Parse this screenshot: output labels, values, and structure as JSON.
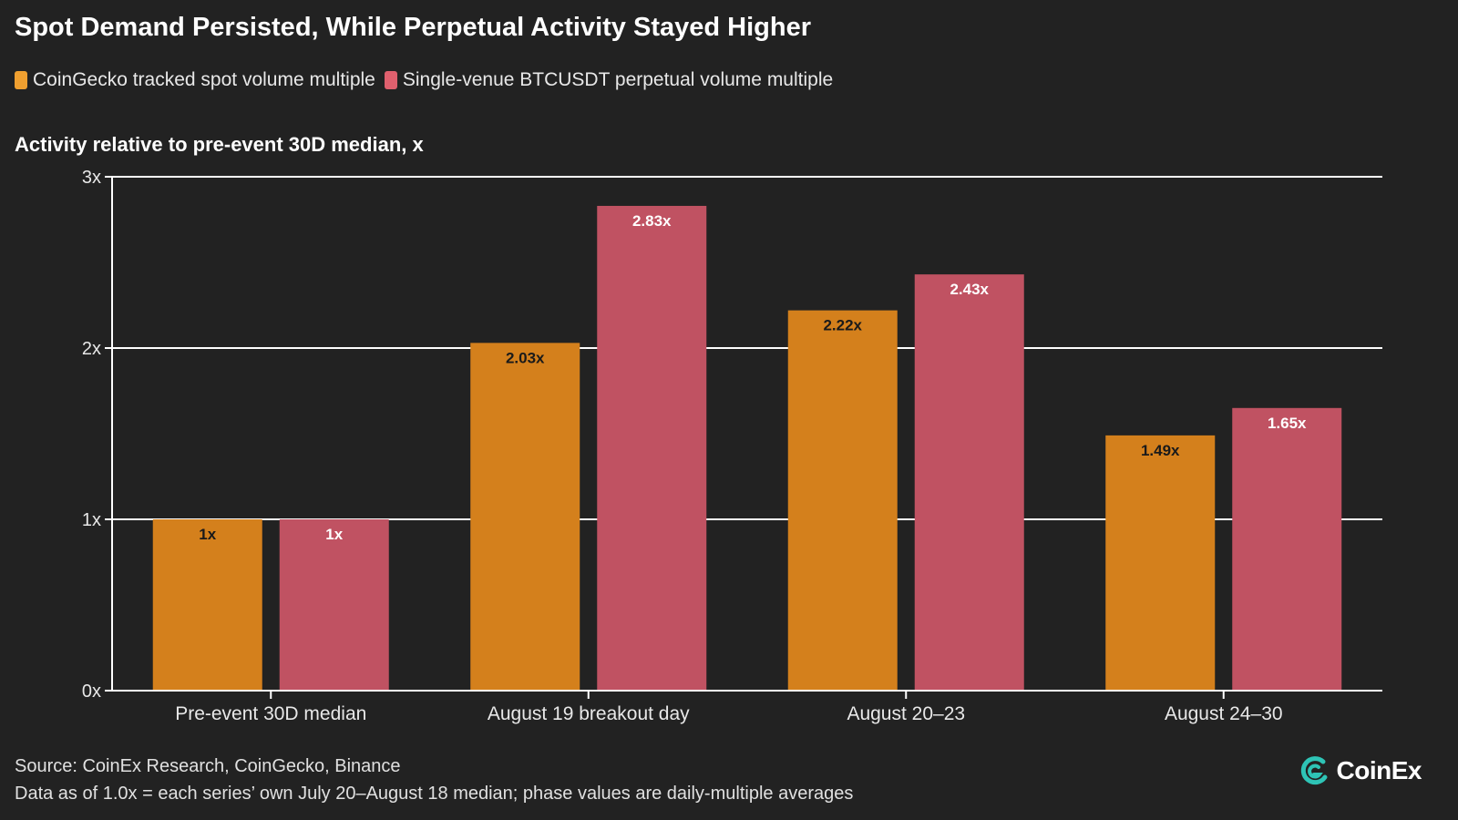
{
  "title": "Spot Demand Persisted, While Perpetual Activity Stayed Higher",
  "subtitle": "Activity relative to pre-event 30D median, x",
  "colors": {
    "background": "#222222",
    "spot": "#d4801c",
    "perp": "#c05262",
    "legend_spot": "#f0a030",
    "legend_perp": "#e0606e",
    "grid": "#ffffff",
    "brand": "#2ec4b6"
  },
  "chart_data": {
    "type": "bar",
    "categories": [
      "Pre-event 30D median",
      "August 19 breakout day",
      "August 20–23",
      "August 24–30"
    ],
    "series": [
      {
        "name": "CoinGecko tracked spot volume multiple",
        "values": [
          1,
          2.03,
          2.22,
          1.49
        ],
        "labels": [
          "1x",
          "2.03x",
          "2.22x",
          "1.49x"
        ]
      },
      {
        "name": "Single-venue BTCUSDT perpetual volume multiple",
        "values": [
          1,
          2.83,
          2.43,
          1.65
        ],
        "labels": [
          "1x",
          "2.83x",
          "2.43x",
          "1.65x"
        ]
      }
    ],
    "ylim": [
      0,
      3
    ],
    "yticks": [
      0,
      1,
      2,
      3
    ],
    "ytick_labels": [
      "0x",
      "1x",
      "2x",
      "3x"
    ],
    "grid": true,
    "legend_position": "top-left"
  },
  "footer": {
    "source": "Source: CoinEx Research, CoinGecko, Binance",
    "note": "Data as of 1.0x = each series’ own July 20–August 18 median; phase values are daily-multiple averages"
  },
  "brand": {
    "name": "CoinEx",
    "icon": "coinex-logo-icon"
  }
}
